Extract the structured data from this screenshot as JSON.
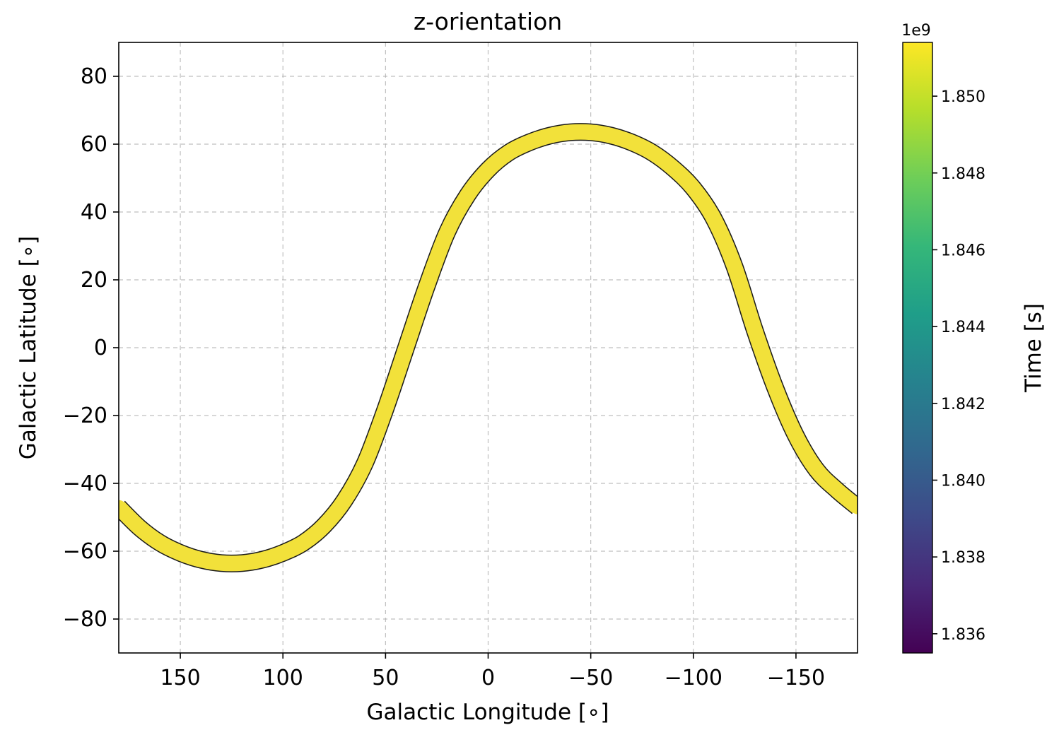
{
  "colors": {
    "track": "#f2e13a",
    "track_edge": "#1a1a1a",
    "grid": "#b0b0b0",
    "viridis": [
      "#440154",
      "#482878",
      "#3e4a89",
      "#31688e",
      "#26828e",
      "#1f9e89",
      "#35b779",
      "#6ece58",
      "#b5de2b",
      "#fde725"
    ]
  },
  "chart_data": [
    {
      "type": "scatter",
      "title": "z-orientation",
      "xlabel": "Galactic Longitude [∘]",
      "ylabel": "Galactic Latitude [∘]",
      "xlim": [
        180,
        -180
      ],
      "ylim": [
        -90,
        90
      ],
      "x_ticks": [
        150,
        100,
        50,
        0,
        -50,
        -100,
        -150
      ],
      "x_tick_labels": [
        "150",
        "100",
        "50",
        "0",
        "−50",
        "−100",
        "−150"
      ],
      "y_ticks": [
        80,
        60,
        40,
        20,
        0,
        -20,
        -40,
        -60,
        -80
      ],
      "y_tick_labels": [
        "80",
        "60",
        "40",
        "20",
        "0",
        "−20",
        "−40",
        "−60",
        "−80"
      ],
      "grid": true,
      "series": [
        {
          "x": [
            180,
            170,
            160,
            150,
            140,
            130,
            120,
            110,
            100,
            90,
            80,
            70,
            60,
            50,
            40,
            30,
            20,
            10,
            0,
            -10,
            -20,
            -30,
            -40,
            -50,
            -60,
            -70,
            -80,
            -90,
            -100,
            -110,
            -120,
            -130,
            -140,
            -150,
            -160,
            -170,
            -180
          ],
          "y": [
            -47,
            -53,
            -57.5,
            -60.5,
            -62.5,
            -63.5,
            -63.5,
            -62.5,
            -60.5,
            -57.5,
            -52.5,
            -45,
            -34,
            -18,
            0,
            18,
            34,
            45,
            52.5,
            57.5,
            60.5,
            62.5,
            63.5,
            63.5,
            62.5,
            60.5,
            57.5,
            53,
            47,
            38,
            24,
            5,
            -12,
            -26,
            -36,
            -42,
            -47
          ]
        }
      ]
    },
    {
      "type": "heatmap",
      "colorbar": true,
      "label": "Time [s]",
      "exponent_label": "1e9",
      "range": [
        1.8355,
        1.8514
      ],
      "ticks": [
        1.836,
        1.838,
        1.84,
        1.842,
        1.844,
        1.846,
        1.848,
        1.85
      ],
      "tick_labels": [
        "1.836",
        "1.838",
        "1.840",
        "1.842",
        "1.844",
        "1.846",
        "1.848",
        "1.850"
      ]
    }
  ]
}
